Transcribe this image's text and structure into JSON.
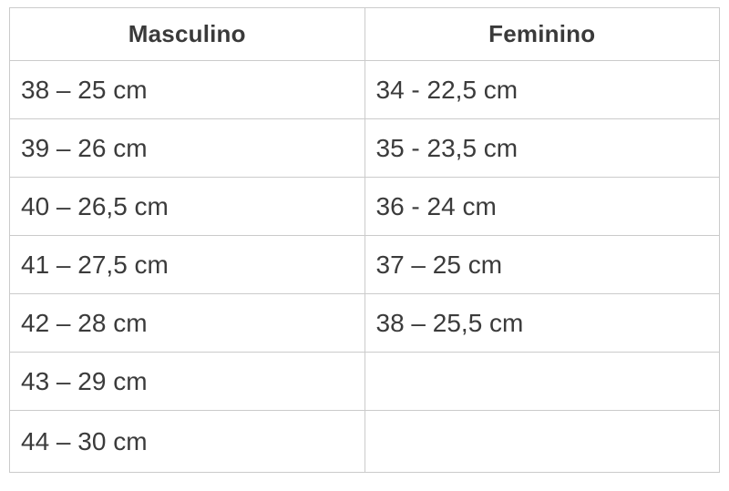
{
  "chart_data": {
    "type": "table",
    "title": "",
    "columns": [
      "Masculino",
      "Feminino"
    ],
    "rows": [
      [
        "38 – 25 cm",
        "34 - 22,5 cm"
      ],
      [
        "39 – 26 cm",
        "35 - 23,5 cm"
      ],
      [
        "40 – 26,5 cm",
        "36 - 24 cm"
      ],
      [
        "41 – 27,5 cm",
        "37 – 25 cm"
      ],
      [
        "42 – 28 cm",
        "38 – 25,5 cm"
      ],
      [
        "43 – 29 cm",
        ""
      ],
      [
        "44 – 30 cm",
        ""
      ]
    ]
  },
  "colors": {
    "border": "#cbcbcb",
    "text": "#3b3b3b",
    "background": "#ffffff"
  }
}
